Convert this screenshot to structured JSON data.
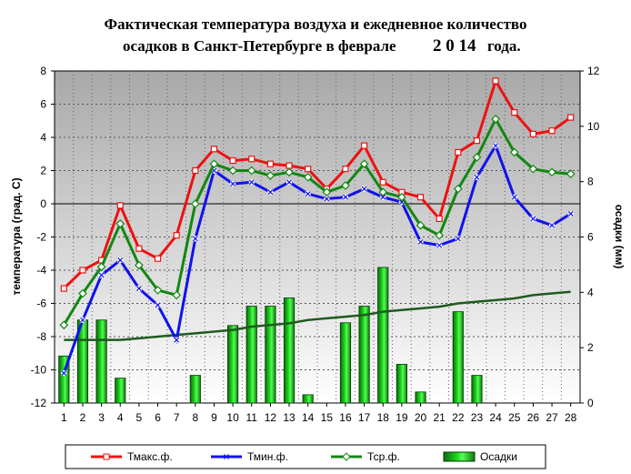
{
  "chart_data": {
    "type": "line",
    "title_line1": "Фактическая температура воздуха и ежедневное количество",
    "title_line2": "осадков в Санкт-Петербурге в феврале",
    "title_year": "2 0 14",
    "title_suffix": "года.",
    "ylabel": "температура (град. С)",
    "y2label": "осадки (мм)",
    "ylim": [
      -12,
      8
    ],
    "y2lim": [
      0,
      12
    ],
    "yticks": [
      "8",
      "6",
      "4",
      "2",
      "0",
      "-2",
      "-4",
      "-6",
      "-8",
      "-10",
      "-12"
    ],
    "y2ticks": [
      "12",
      "10",
      "8",
      "6",
      "4",
      "2",
      "0"
    ],
    "categories": [
      "1",
      "2",
      "3",
      "4",
      "5",
      "6",
      "7",
      "8",
      "9",
      "10",
      "11",
      "12",
      "13",
      "14",
      "15",
      "16",
      "17",
      "18",
      "19",
      "20",
      "21",
      "22",
      "23",
      "24",
      "25",
      "26",
      "27",
      "28"
    ],
    "series": [
      {
        "name": "Тмакс.ф.",
        "color": "#ee1111",
        "marker": "square",
        "values": [
          -5.1,
          -4.0,
          -3.4,
          -0.1,
          -2.7,
          -3.3,
          -1.9,
          2.0,
          3.3,
          2.6,
          2.7,
          2.4,
          2.3,
          2.1,
          0.9,
          2.1,
          3.5,
          1.3,
          0.7,
          0.4,
          -0.9,
          3.1,
          3.8,
          7.4,
          5.5,
          4.2,
          4.4,
          5.2
        ]
      },
      {
        "name": "Тмин.ф.",
        "color": "#1111ee",
        "marker": "x",
        "values": [
          -10.2,
          -7.0,
          -4.3,
          -3.4,
          -5.1,
          -6.1,
          -8.2,
          -2.1,
          2.0,
          1.2,
          1.3,
          0.7,
          1.3,
          0.6,
          0.3,
          0.4,
          0.9,
          0.4,
          0.1,
          -2.3,
          -2.5,
          -2.1,
          1.6,
          3.5,
          0.4,
          -0.9,
          -1.3,
          -0.6
        ]
      },
      {
        "name": "Тср.ф.",
        "color": "#118811",
        "marker": "diamond",
        "values": [
          -7.3,
          -5.4,
          -3.8,
          -1.2,
          -3.7,
          -5.2,
          -5.5,
          0.0,
          2.4,
          2.0,
          2.0,
          1.7,
          1.9,
          1.6,
          0.7,
          1.1,
          2.4,
          0.7,
          0.4,
          -1.3,
          -1.9,
          0.9,
          2.8,
          5.1,
          3.1,
          2.1,
          1.9,
          1.8
        ]
      }
    ],
    "normal_line": {
      "color": "#1f5a1f",
      "values": [
        -8.2,
        -8.2,
        -8.2,
        -8.2,
        -8.1,
        -8.0,
        -7.9,
        -7.8,
        -7.7,
        -7.6,
        -7.4,
        -7.3,
        -7.2,
        -7.0,
        -6.9,
        -6.8,
        -6.7,
        -6.5,
        -6.4,
        -6.3,
        -6.2,
        -6.0,
        -5.9,
        -5.8,
        -5.7,
        -5.5,
        -5.4,
        -5.3
      ]
    },
    "bars": {
      "name": "Осадки",
      "values": [
        1.7,
        3.0,
        3.0,
        0.9,
        0,
        0,
        0,
        1.0,
        0,
        2.8,
        3.5,
        3.5,
        3.8,
        0.3,
        0,
        2.9,
        3.5,
        4.9,
        1.4,
        0.4,
        0,
        3.3,
        1.0,
        0,
        0,
        0,
        0,
        0
      ]
    },
    "grid": true,
    "legend_position": "bottom"
  }
}
